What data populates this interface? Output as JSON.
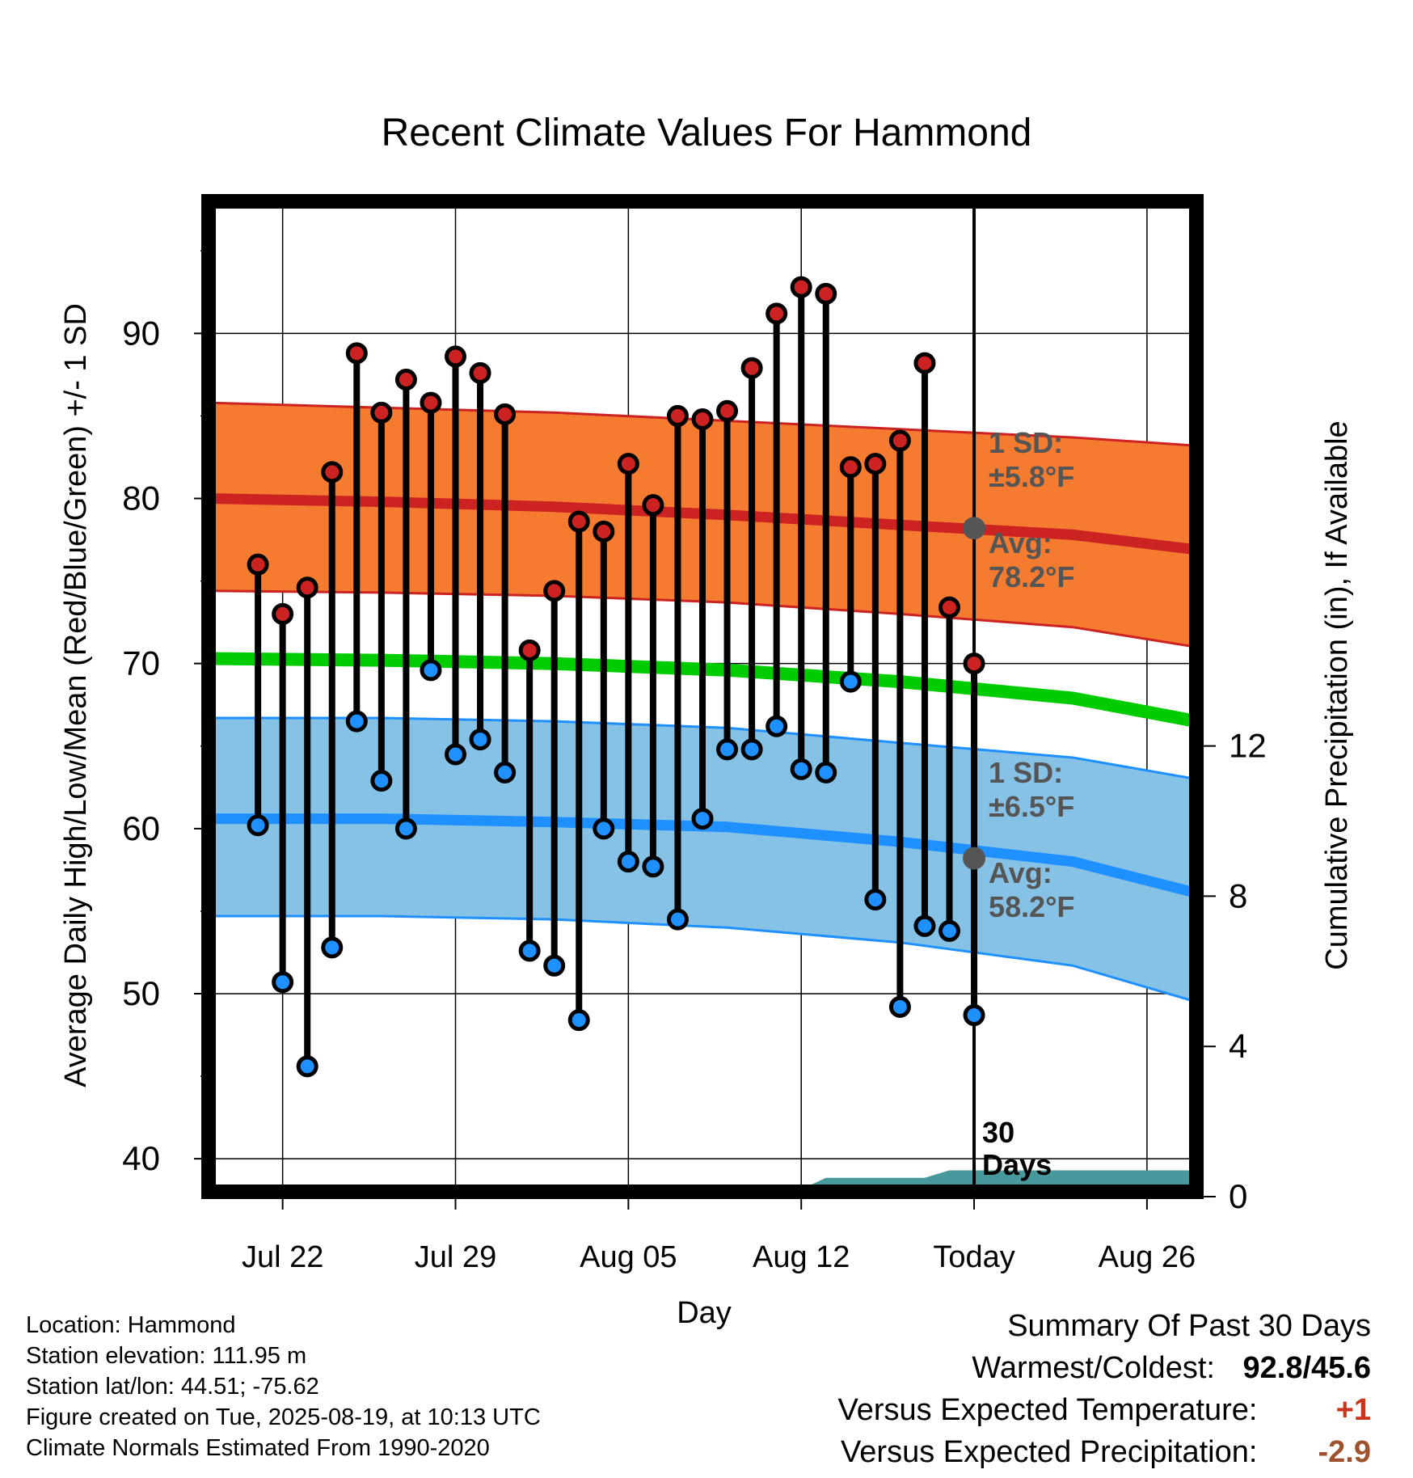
{
  "chart_data": {
    "type": "line",
    "title": "Recent Climate Values For Hammond",
    "xlabel": "Day",
    "ylabel": "Average Daily High/Low/Mean (Red/Blue/Green) +/- 1 SD",
    "y2label": "Cumulative Precipitation (in), If Available",
    "ylim": [
      38,
      98
    ],
    "y2lim": [
      0,
      26.5
    ],
    "yticks": [
      "40",
      "50",
      "60",
      "70",
      "80",
      "90"
    ],
    "y2ticks": [
      "0",
      "4",
      "8",
      "12"
    ],
    "x_start": "Jul 19",
    "x_end": "Aug 28",
    "xticks": [
      {
        "day": 3,
        "label": "Jul 22"
      },
      {
        "day": 10,
        "label": "Jul 29"
      },
      {
        "day": 17,
        "label": "Aug 05"
      },
      {
        "day": 24,
        "label": "Aug 12"
      },
      {
        "day": 31,
        "label": "Today"
      },
      {
        "day": 38,
        "label": "Aug 26"
      }
    ],
    "today_day": 31,
    "today_label": "30 Days",
    "grid": true,
    "observed_days": [
      "Jul 21",
      "Jul 22",
      "Jul 23",
      "Jul 24",
      "Jul 25",
      "Jul 26",
      "Jul 27",
      "Jul 28",
      "Jul 29",
      "Jul 30",
      "Jul 31",
      "Aug 01",
      "Aug 02",
      "Aug 03",
      "Aug 04",
      "Aug 05",
      "Aug 06",
      "Aug 07",
      "Aug 08",
      "Aug 09",
      "Aug 10",
      "Aug 11",
      "Aug 12",
      "Aug 13",
      "Aug 14",
      "Aug 15",
      "Aug 16",
      "Aug 17",
      "Aug 18",
      "Aug 19"
    ],
    "observed_high": [
      76.0,
      73.0,
      74.6,
      81.6,
      88.8,
      85.2,
      87.2,
      85.8,
      88.6,
      87.6,
      85.1,
      70.8,
      74.4,
      78.6,
      78.0,
      82.1,
      79.6,
      85.0,
      84.8,
      85.3,
      87.9,
      91.2,
      92.8,
      92.4,
      81.9,
      82.1,
      83.5,
      88.2,
      73.4,
      70.0
    ],
    "observed_low": [
      60.2,
      50.7,
      45.6,
      52.8,
      66.5,
      62.9,
      60.0,
      69.6,
      64.5,
      65.4,
      63.4,
      52.6,
      51.7,
      48.4,
      60.0,
      58.0,
      57.7,
      54.5,
      60.6,
      64.8,
      64.8,
      66.2,
      63.6,
      63.4,
      68.9,
      55.7,
      49.2,
      54.1,
      53.8,
      48.7
    ],
    "normal_days": [
      "Jul 19",
      "Jul 26",
      "Aug 02",
      "Aug 09",
      "Aug 16",
      "Aug 23",
      "Aug 28"
    ],
    "normal_high": [
      80.0,
      79.8,
      79.5,
      79.0,
      78.4,
      77.8,
      76.9
    ],
    "normal_high_sd_upper": [
      85.8,
      85.5,
      85.2,
      84.7,
      84.2,
      83.7,
      83.2
    ],
    "normal_high_sd_lower": [
      74.4,
      74.3,
      74.1,
      73.7,
      73.0,
      72.2,
      71.0
    ],
    "normal_mean": [
      70.3,
      70.2,
      70.0,
      69.6,
      68.9,
      67.9,
      66.5
    ],
    "normal_low": [
      60.6,
      60.6,
      60.4,
      60.1,
      59.2,
      58.0,
      56.1
    ],
    "normal_low_sd_upper": [
      66.7,
      66.7,
      66.5,
      66.1,
      65.2,
      64.3,
      63.0
    ],
    "normal_low_sd_lower": [
      54.7,
      54.7,
      54.5,
      54.0,
      53.1,
      51.7,
      49.5
    ],
    "precip_days": [
      "Jul 19",
      "Jul 26",
      "Jul 27",
      "Aug 11",
      "Aug 12",
      "Aug 13",
      "Aug 17",
      "Aug 18",
      "Aug 28"
    ],
    "precip_cumulative": [
      0.0,
      0.0,
      0.2,
      0.2,
      0.2,
      0.5,
      0.5,
      0.7,
      0.7
    ],
    "colors": {
      "high": "#cc2222",
      "low": "#1e90ff",
      "mean": "#00cc00",
      "high_band": "#f47b30",
      "low_band": "#86c1e6",
      "precip": "#48999d",
      "annotation": "#555555"
    },
    "annotations": {
      "high_sd_label": "1 SD:",
      "high_sd_value": "±5.8°F",
      "high_avg_label": "Avg:",
      "high_avg_value": "78.2°F",
      "high_avg": 78.2,
      "low_sd_label": "1 SD:",
      "low_sd_value": "±6.5°F",
      "low_avg_label": "Avg:",
      "low_avg_value": "58.2°F",
      "low_avg": 58.2
    }
  },
  "info": {
    "location": "Location: Hammond",
    "elevation": "Station elevation: 111.95 m",
    "latlon": "Station lat/lon: 44.51; -75.62",
    "created": "Figure created on Tue, 2025-08-19, at 10:13 UTC",
    "normals": "Climate Normals Estimated From 1990-2020"
  },
  "summary": {
    "heading": "Summary Of Past 30 Days",
    "warm_cold_label": "Warmest/Coldest:",
    "warm_cold_value": "92.8/45.6",
    "temp_label": "Versus Expected Temperature:",
    "temp_value": "+1",
    "temp_color": "#c8341c",
    "precip_label": "Versus Expected Precipitation:",
    "precip_value": "-2.9",
    "precip_color": "#a0522d"
  }
}
